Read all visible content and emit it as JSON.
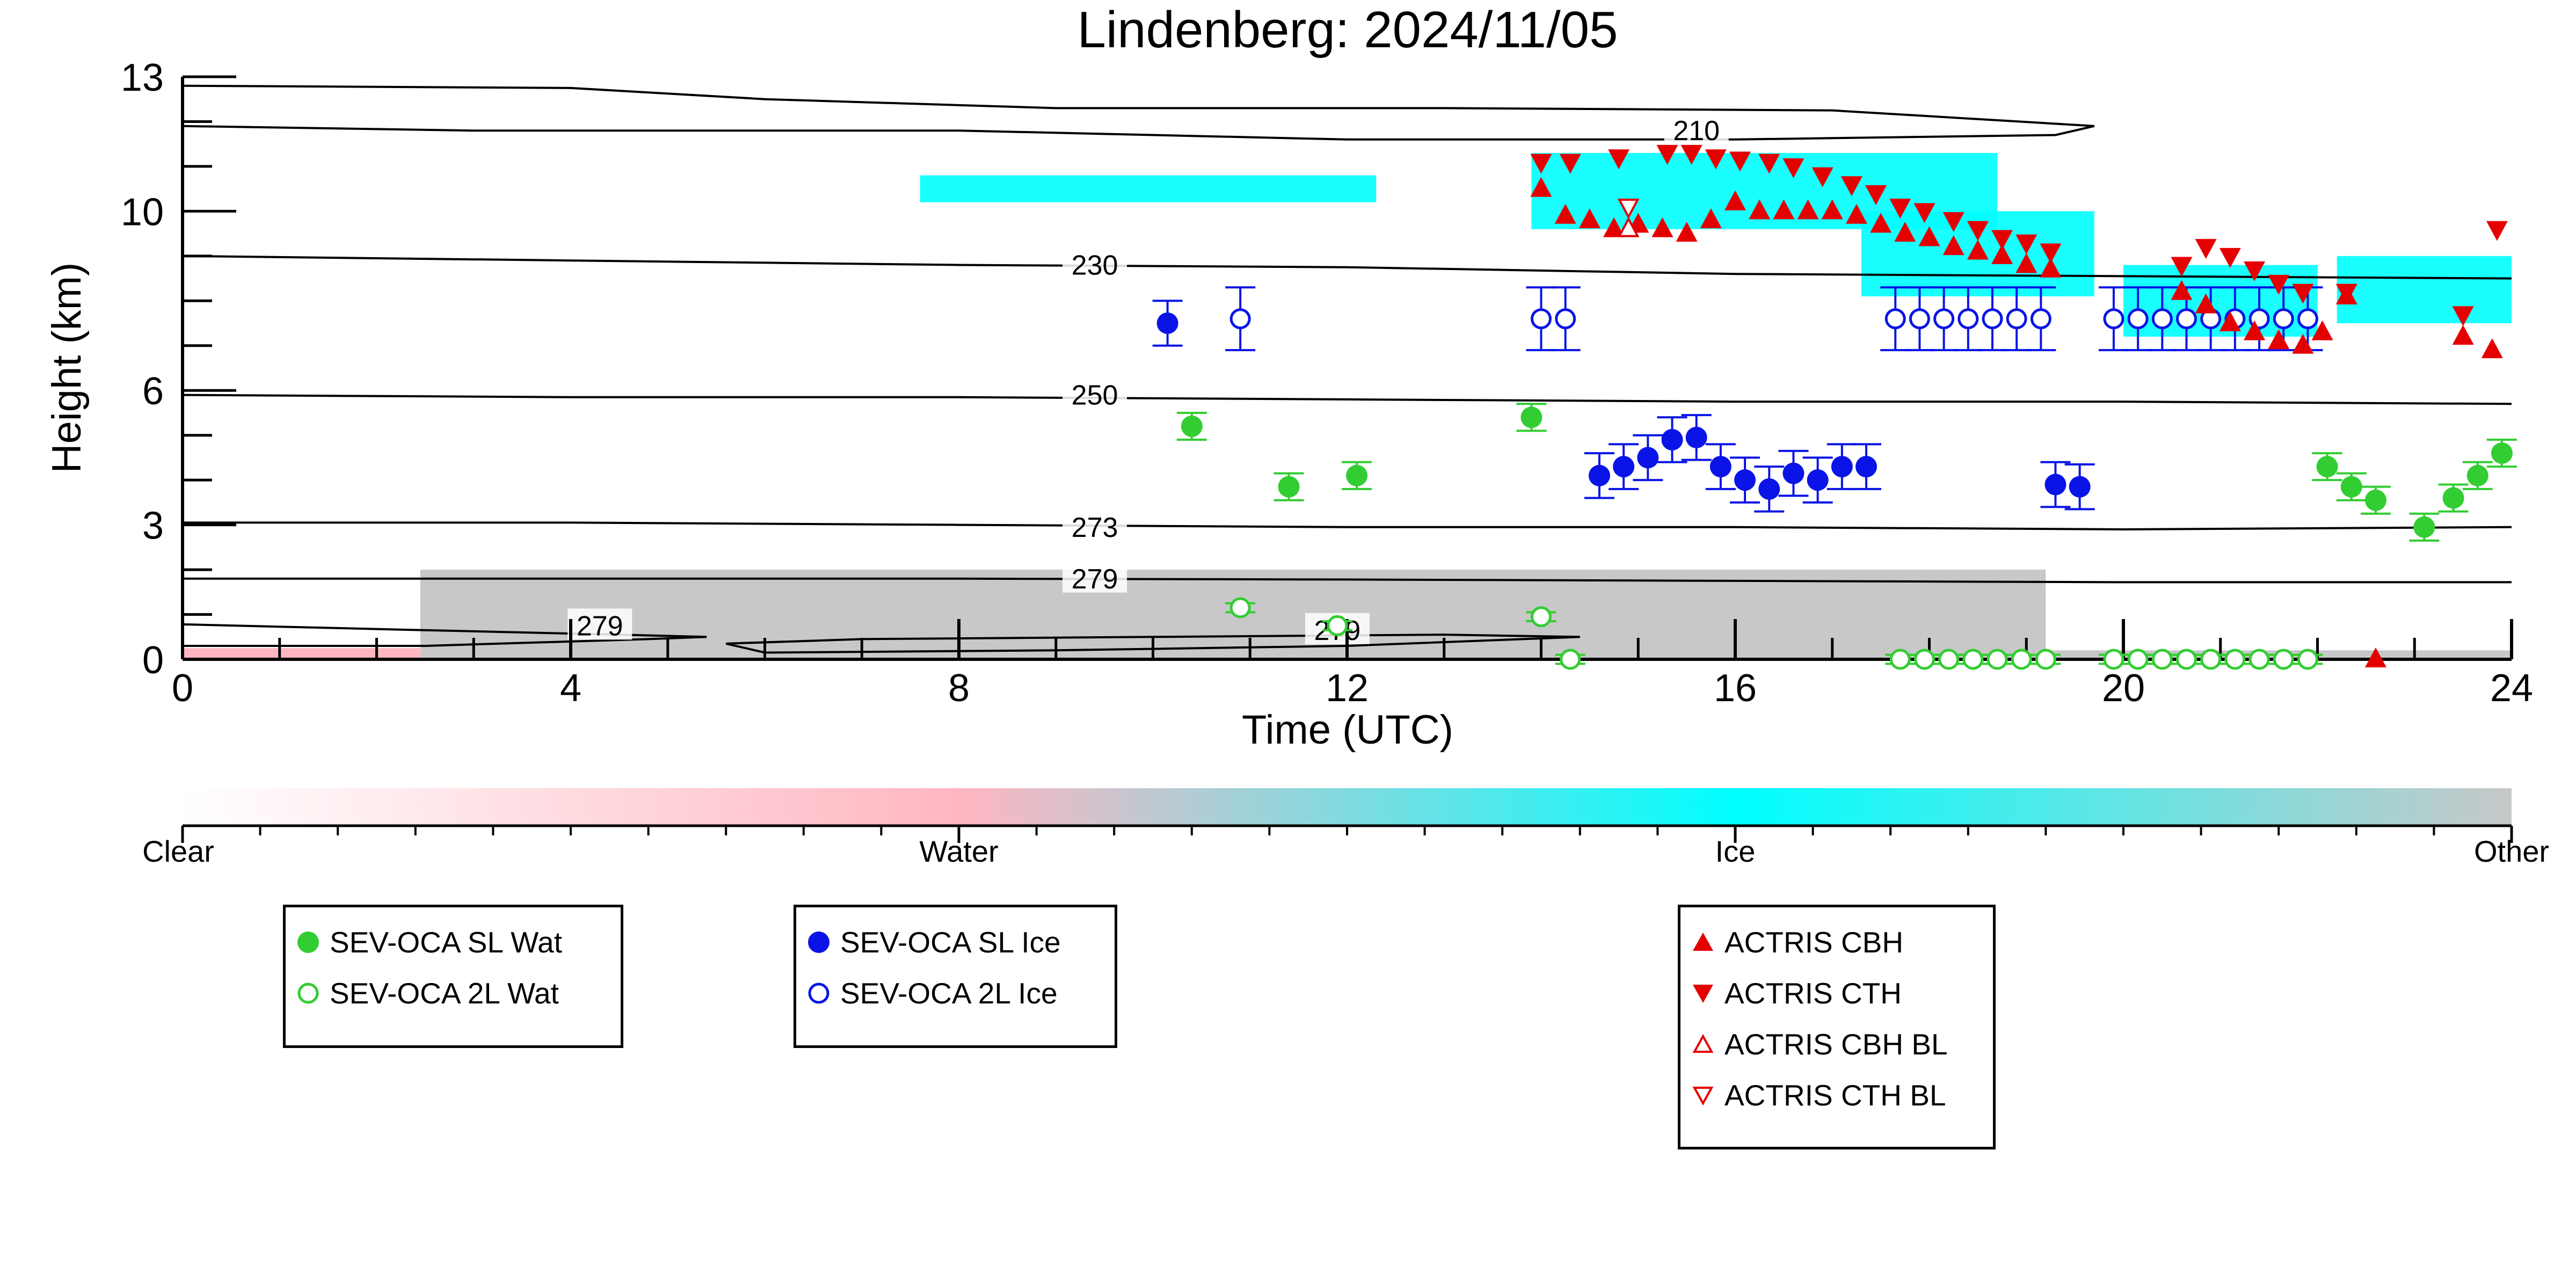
{
  "chart_data": {
    "type": "scatter",
    "title": "Lindenberg: 2024/11/05",
    "xlabel": "Time (UTC)",
    "ylabel": "Height (km)",
    "xlim": [
      0,
      24
    ],
    "x_ticks": [
      0,
      4,
      8,
      12,
      16,
      20,
      24
    ],
    "y_ticks": [
      0,
      3,
      6,
      10,
      13
    ],
    "contours": [
      {
        "label": "210",
        "label_at": [
          15.6,
          11.8
        ],
        "points": [
          [
            0,
            12.8
          ],
          [
            4,
            12.75
          ],
          [
            6,
            12.5
          ],
          [
            9,
            12.3
          ],
          [
            13,
            12.3
          ],
          [
            17,
            12.25
          ],
          [
            19.7,
            11.9
          ],
          [
            19.3,
            11.7
          ],
          [
            16,
            11.6
          ],
          [
            12,
            11.6
          ],
          [
            8,
            11.8
          ],
          [
            3,
            11.8
          ],
          [
            0,
            11.9
          ]
        ]
      },
      {
        "label": "230",
        "label_at": [
          9.4,
          8.8
        ],
        "points": [
          [
            0,
            9.0
          ],
          [
            4,
            8.9
          ],
          [
            8,
            8.8
          ],
          [
            12,
            8.75
          ],
          [
            16,
            8.6
          ],
          [
            20,
            8.55
          ],
          [
            24,
            8.5
          ]
        ]
      },
      {
        "label": "250",
        "label_at": [
          9.4,
          5.9
        ],
        "points": [
          [
            0,
            5.9
          ],
          [
            4,
            5.85
          ],
          [
            8,
            5.85
          ],
          [
            12,
            5.8
          ],
          [
            16,
            5.75
          ],
          [
            20,
            5.75
          ],
          [
            24,
            5.7
          ]
        ]
      },
      {
        "label": "273",
        "label_at": [
          9.4,
          2.95
        ],
        "points": [
          [
            0,
            3.05
          ],
          [
            4,
            3.05
          ],
          [
            8,
            3.0
          ],
          [
            12,
            2.95
          ],
          [
            16,
            2.95
          ],
          [
            20,
            2.9
          ],
          [
            24,
            2.95
          ]
        ]
      },
      {
        "label": "279",
        "label_at": [
          9.4,
          1.8
        ],
        "points": [
          [
            0,
            1.8
          ],
          [
            4,
            1.8
          ],
          [
            8,
            1.8
          ],
          [
            12,
            1.78
          ],
          [
            16,
            1.75
          ],
          [
            20,
            1.72
          ],
          [
            24,
            1.72
          ]
        ]
      },
      {
        "label": "279",
        "label_at": [
          4.3,
          0.75
        ],
        "points": [
          [
            0,
            0.78
          ],
          [
            2.5,
            0.65
          ],
          [
            4.5,
            0.55
          ],
          [
            5.4,
            0.5
          ],
          [
            4.8,
            0.45
          ],
          [
            2.5,
            0.3
          ],
          [
            0,
            0.3
          ]
        ]
      },
      {
        "label": "279",
        "label_at": [
          11.9,
          0.65
        ],
        "points": [
          [
            5.6,
            0.35
          ],
          [
            7,
            0.45
          ],
          [
            10,
            0.5
          ],
          [
            13,
            0.55
          ],
          [
            14.4,
            0.5
          ],
          [
            12,
            0.3
          ],
          [
            9,
            0.2
          ],
          [
            6,
            0.15
          ],
          [
            5.6,
            0.35
          ]
        ]
      }
    ],
    "series": [
      {
        "name": "SEV-OCA SL Wat",
        "color": "#32cd32",
        "marker": "circle-filled",
        "err": 0.3,
        "points": [
          [
            10.4,
            5.2
          ],
          [
            11.4,
            3.85
          ],
          [
            12.1,
            4.1
          ],
          [
            13.9,
            5.4
          ],
          [
            22.1,
            4.3
          ],
          [
            22.35,
            3.85
          ],
          [
            22.6,
            3.55
          ],
          [
            23.1,
            2.95
          ],
          [
            23.4,
            3.6
          ],
          [
            23.65,
            4.1
          ],
          [
            23.9,
            4.6
          ]
        ]
      },
      {
        "name": "SEV-OCA 2L Wat",
        "color": "#32cd32",
        "marker": "circle-open",
        "err": 0.1,
        "points": [
          [
            10.9,
            1.15
          ],
          [
            11.9,
            0.75
          ],
          [
            14.0,
            0.95
          ],
          [
            14.3,
            0.0
          ],
          [
            17.7,
            0.0
          ],
          [
            17.95,
            0.0
          ],
          [
            18.2,
            0.0
          ],
          [
            18.45,
            0.0
          ],
          [
            18.7,
            0.0
          ],
          [
            18.95,
            0.0
          ],
          [
            19.2,
            0.0
          ],
          [
            19.9,
            0.0
          ],
          [
            20.15,
            0.0
          ],
          [
            20.4,
            0.0
          ],
          [
            20.65,
            0.0
          ],
          [
            20.9,
            0.0
          ],
          [
            21.15,
            0.0
          ],
          [
            21.4,
            0.0
          ],
          [
            21.65,
            0.0
          ],
          [
            21.9,
            0.0
          ]
        ]
      },
      {
        "name": "SEV-OCA SL Ice",
        "color": "#0a14e6",
        "marker": "circle-filled",
        "err": 0.5,
        "points": [
          [
            10.15,
            7.5
          ],
          [
            14.6,
            4.1
          ],
          [
            14.85,
            4.3
          ],
          [
            15.1,
            4.5
          ],
          [
            15.35,
            4.9
          ],
          [
            15.6,
            4.95
          ],
          [
            15.85,
            4.3
          ],
          [
            16.1,
            4.0
          ],
          [
            16.35,
            3.8
          ],
          [
            16.6,
            4.15
          ],
          [
            16.85,
            4.0
          ],
          [
            17.1,
            4.3
          ],
          [
            17.35,
            4.3
          ],
          [
            19.3,
            3.9
          ],
          [
            19.55,
            3.85
          ]
        ]
      },
      {
        "name": "SEV-OCA 2L Ice",
        "color": "#0a14e6",
        "marker": "circle-open",
        "err": 0.7,
        "points": [
          [
            10.9,
            7.6
          ],
          [
            14.0,
            7.6
          ],
          [
            14.25,
            7.6
          ],
          [
            17.65,
            7.6
          ],
          [
            17.9,
            7.6
          ],
          [
            18.15,
            7.6
          ],
          [
            18.4,
            7.6
          ],
          [
            18.65,
            7.6
          ],
          [
            18.9,
            7.6
          ],
          [
            19.15,
            7.6
          ],
          [
            19.9,
            7.6
          ],
          [
            20.15,
            7.6
          ],
          [
            20.4,
            7.6
          ],
          [
            20.65,
            7.6
          ],
          [
            20.9,
            7.6
          ],
          [
            21.15,
            7.6
          ],
          [
            21.4,
            7.6
          ],
          [
            21.65,
            7.6
          ],
          [
            21.9,
            7.6
          ]
        ]
      },
      {
        "name": "ACTRIS CBH",
        "color": "#e50000",
        "marker": "triangle-up-filled",
        "points": [
          [
            14.0,
            10.5
          ],
          [
            14.25,
            9.9
          ],
          [
            14.5,
            9.8
          ],
          [
            14.75,
            9.6
          ],
          [
            15.0,
            9.7
          ],
          [
            15.25,
            9.6
          ],
          [
            15.5,
            9.5
          ],
          [
            15.75,
            9.8
          ],
          [
            16.0,
            10.2
          ],
          [
            16.25,
            10.0
          ],
          [
            16.5,
            10.0
          ],
          [
            16.75,
            10.0
          ],
          [
            17.0,
            10.0
          ],
          [
            17.25,
            9.9
          ],
          [
            17.5,
            9.7
          ],
          [
            17.75,
            9.5
          ],
          [
            18.0,
            9.4
          ],
          [
            18.25,
            9.2
          ],
          [
            18.5,
            9.1
          ],
          [
            18.75,
            9.0
          ],
          [
            19.0,
            8.8
          ],
          [
            19.25,
            8.7
          ],
          [
            20.6,
            8.2
          ],
          [
            20.85,
            7.9
          ],
          [
            21.1,
            7.5
          ],
          [
            21.35,
            7.3
          ],
          [
            21.6,
            7.1
          ],
          [
            21.85,
            7.0
          ],
          [
            22.05,
            7.3
          ],
          [
            22.3,
            8.1
          ],
          [
            22.6,
            0.0
          ],
          [
            23.5,
            7.2
          ],
          [
            23.8,
            6.9
          ]
        ]
      },
      {
        "name": "ACTRIS CTH",
        "color": "#e50000",
        "marker": "triangle-down-filled",
        "points": [
          [
            14.0,
            11.1
          ],
          [
            14.3,
            11.1
          ],
          [
            14.8,
            11.2
          ],
          [
            15.3,
            11.3
          ],
          [
            15.55,
            11.3
          ],
          [
            15.8,
            11.2
          ],
          [
            16.05,
            11.15
          ],
          [
            16.35,
            11.1
          ],
          [
            16.6,
            11.0
          ],
          [
            16.9,
            10.8
          ],
          [
            17.2,
            10.6
          ],
          [
            17.45,
            10.4
          ],
          [
            17.7,
            10.1
          ],
          [
            17.95,
            10.0
          ],
          [
            18.25,
            9.8
          ],
          [
            18.5,
            9.6
          ],
          [
            18.75,
            9.4
          ],
          [
            19.0,
            9.3
          ],
          [
            19.25,
            9.1
          ],
          [
            20.6,
            8.8
          ],
          [
            20.85,
            9.2
          ],
          [
            21.1,
            9.0
          ],
          [
            21.35,
            8.7
          ],
          [
            21.6,
            8.4
          ],
          [
            21.85,
            8.2
          ],
          [
            22.3,
            8.2
          ],
          [
            23.5,
            7.7
          ],
          [
            23.85,
            9.6
          ]
        ]
      },
      {
        "name": "ACTRIS CBH BL",
        "color": "#e50000",
        "marker": "triangle-up-open",
        "points": [
          [
            14.9,
            9.6
          ]
        ]
      },
      {
        "name": "ACTRIS CTH BL",
        "color": "#e50000",
        "marker": "triangle-down-open",
        "points": [
          [
            14.9,
            10.1
          ]
        ]
      }
    ],
    "cloud_phase_regions": [
      {
        "class": "Other",
        "color": "#c8c8c8",
        "x": [
          2.45,
          19.2
        ],
        "y": [
          0.0,
          2.0
        ]
      },
      {
        "class": "Other",
        "color": "#c8c8c8",
        "x": [
          19.2,
          24.0
        ],
        "y": [
          0.0,
          0.2
        ]
      },
      {
        "class": "Water",
        "color": "#ffb6c1",
        "x": [
          0.0,
          2.45
        ],
        "y": [
          0.0,
          0.25
        ]
      },
      {
        "class": "Ice",
        "color": "#00ffff",
        "x": [
          7.6,
          12.3
        ],
        "y": [
          10.2,
          10.8
        ]
      },
      {
        "class": "Ice",
        "color": "#00ffff",
        "x": [
          13.9,
          18.7
        ],
        "y": [
          9.6,
          11.3
        ]
      },
      {
        "class": "Ice",
        "color": "#00ffff",
        "x": [
          17.3,
          19.7
        ],
        "y": [
          8.1,
          10.0
        ]
      },
      {
        "class": "Ice",
        "color": "#00ffff",
        "x": [
          20.0,
          22.0
        ],
        "y": [
          7.2,
          8.8
        ]
      },
      {
        "class": "Ice",
        "color": "#00ffff",
        "x": [
          22.2,
          24.0
        ],
        "y": [
          7.5,
          9.0
        ]
      }
    ],
    "colorbar": {
      "labels": [
        "Clear",
        "Water",
        "Ice",
        "Other"
      ],
      "colors": [
        "#ffffff",
        "#ffb6c1",
        "#00ffff",
        "#c8c8c8"
      ]
    },
    "legends": [
      {
        "entries": [
          "SEV-OCA SL Wat",
          "SEV-OCA 2L Wat"
        ]
      },
      {
        "entries": [
          "SEV-OCA SL Ice",
          "SEV-OCA 2L Ice"
        ]
      },
      {
        "entries": [
          "ACTRIS CBH",
          "ACTRIS CTH",
          "ACTRIS CBH BL",
          "ACTRIS CTH BL"
        ]
      }
    ],
    "grid": false
  }
}
